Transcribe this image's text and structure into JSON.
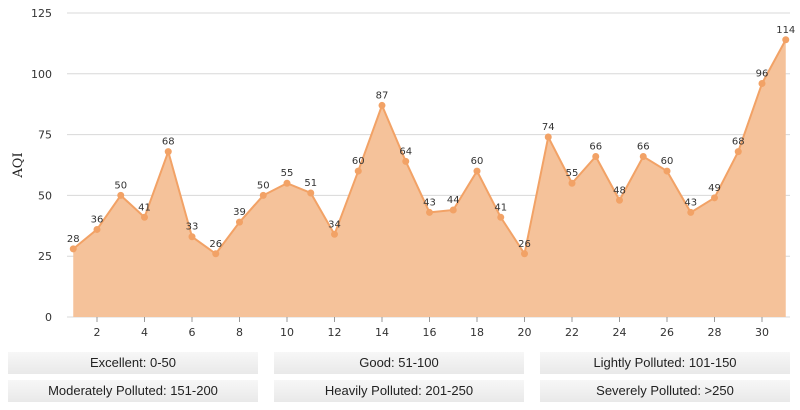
{
  "chart_data": {
    "type": "area",
    "title": "",
    "xlabel": "",
    "ylabel": "AQI",
    "ylim": [
      0,
      125
    ],
    "yticks": [
      0,
      25,
      50,
      75,
      100,
      125
    ],
    "xticks": [
      2,
      4,
      6,
      8,
      10,
      12,
      14,
      16,
      18,
      20,
      22,
      24,
      26,
      28,
      30
    ],
    "x": [
      1,
      2,
      3,
      4,
      5,
      6,
      7,
      8,
      9,
      10,
      11,
      12,
      13,
      14,
      15,
      16,
      17,
      18,
      19,
      20,
      21,
      22,
      23,
      24,
      25,
      26,
      27,
      28,
      29,
      30,
      31
    ],
    "series": [
      {
        "name": "AQI",
        "values": [
          28,
          36,
          50,
          41,
          68,
          33,
          26,
          39,
          50,
          55,
          51,
          34,
          60,
          87,
          64,
          43,
          44,
          60,
          41,
          26,
          74,
          55,
          66,
          48,
          66,
          60,
          43,
          49,
          68,
          96,
          114
        ]
      }
    ],
    "grid": true,
    "colors": {
      "line": "#f2a266",
      "fill": "#f5c29a"
    }
  },
  "legend": [
    "Excellent: 0-50",
    "Good: 51-100",
    "Lightly Polluted: 101-150",
    "Moderately Polluted: 151-200",
    "Heavily Polluted: 201-250",
    "Severely Polluted: >250"
  ]
}
